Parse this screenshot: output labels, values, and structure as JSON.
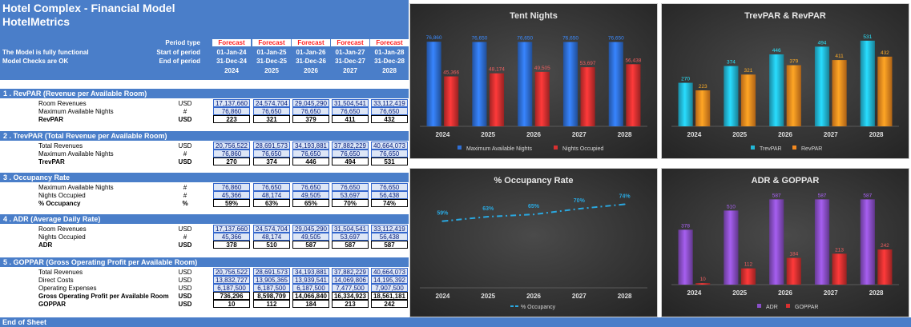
{
  "sheet": {
    "title": "Hotel Complex - Financial Model",
    "subtitle": "HotelMetrics",
    "notes": [
      "The Model is fully functional",
      "Model Checks are OK"
    ],
    "period_labels": [
      "Period type",
      "Start of period",
      "End of period"
    ],
    "years": [
      {
        "type": "Forecast",
        "start": "01-Jan-24",
        "end": "31-Dec-24",
        "year": "2024"
      },
      {
        "type": "Forecast",
        "start": "01-Jan-25",
        "end": "31-Dec-25",
        "year": "2025"
      },
      {
        "type": "Forecast",
        "start": "01-Jan-26",
        "end": "31-Dec-26",
        "year": "2026"
      },
      {
        "type": "Forecast",
        "start": "01-Jan-27",
        "end": "31-Dec-27",
        "year": "2027"
      },
      {
        "type": "Forecast",
        "start": "01-Jan-28",
        "end": "31-Dec-28",
        "year": "2028"
      }
    ],
    "sections": [
      {
        "title": "1 .  RevPAR (Revenue per Available Room)",
        "rows": [
          {
            "label": "Room Revenues",
            "unit": "USD",
            "kind": "in",
            "bold": false,
            "values": [
              "17,137,660",
              "24,574,704",
              "29,045,290",
              "31,504,541",
              "33,112,419"
            ]
          },
          {
            "label": "Maximum Available Nights",
            "unit": "#",
            "kind": "in",
            "bold": false,
            "values": [
              "76,860",
              "76,650",
              "76,650",
              "76,650",
              "76,650"
            ]
          },
          {
            "label": "RevPAR",
            "unit": "USD",
            "kind": "out",
            "bold": true,
            "values": [
              "223",
              "321",
              "379",
              "411",
              "432"
            ]
          }
        ]
      },
      {
        "title": "2 .  TrevPAR (Total Revenue per Available Room)",
        "rows": [
          {
            "label": "Total Revenues",
            "unit": "USD",
            "kind": "in",
            "bold": false,
            "values": [
              "20,756,522",
              "28,691,573",
              "34,193,881",
              "37,882,229",
              "40,664,073"
            ]
          },
          {
            "label": "Maximum Available Nights",
            "unit": "#",
            "kind": "in",
            "bold": false,
            "values": [
              "76,860",
              "76,650",
              "76,650",
              "76,650",
              "76,650"
            ]
          },
          {
            "label": "TrevPAR",
            "unit": "USD",
            "kind": "out",
            "bold": true,
            "values": [
              "270",
              "374",
              "446",
              "494",
              "531"
            ]
          }
        ]
      },
      {
        "title": "3 .  Occupancy Rate",
        "rows": [
          {
            "label": "Maximum Available Nights",
            "unit": "#",
            "kind": "in",
            "bold": false,
            "values": [
              "76,860",
              "76,650",
              "76,650",
              "76,650",
              "76,650"
            ]
          },
          {
            "label": "Nights Occupied",
            "unit": "#",
            "kind": "in",
            "bold": false,
            "values": [
              "45,366",
              "48,174",
              "49,505",
              "53,697",
              "56,438"
            ]
          },
          {
            "label": "% Occupancy",
            "unit": "%",
            "kind": "out",
            "bold": true,
            "values": [
              "59%",
              "63%",
              "65%",
              "70%",
              "74%"
            ]
          }
        ]
      },
      {
        "title": "4 .  ADR (Average Daily Rate)",
        "rows": [
          {
            "label": "Room Revenues",
            "unit": "USD",
            "kind": "in",
            "bold": false,
            "values": [
              "17,137,660",
              "24,574,704",
              "29,045,290",
              "31,504,541",
              "33,112,419"
            ]
          },
          {
            "label": "Nights Occupied",
            "unit": "#",
            "kind": "in",
            "bold": false,
            "values": [
              "45,366",
              "48,174",
              "49,505",
              "53,697",
              "56,438"
            ]
          },
          {
            "label": "ADR",
            "unit": "USD",
            "kind": "out",
            "bold": true,
            "values": [
              "378",
              "510",
              "587",
              "587",
              "587"
            ]
          }
        ]
      },
      {
        "title": "5 .  GOPPAR (Gross Operating Profit per Available Room)",
        "rows": [
          {
            "label": "Total Revenues",
            "unit": "USD",
            "kind": "in",
            "bold": false,
            "values": [
              "20,756,522",
              "28,691,573",
              "34,193,881",
              "37,882,229",
              "40,664,073"
            ]
          },
          {
            "label": "Direct Costs",
            "unit": "USD",
            "kind": "in",
            "bold": false,
            "values": [
              "13,832,727",
              "13,905,365",
              "13,939,541",
              "14,069,806",
              "14,195,392"
            ]
          },
          {
            "label": "Operating Expenses",
            "unit": "USD",
            "kind": "in",
            "bold": false,
            "values": [
              "6,187,500",
              "6,187,500",
              "6,187,500",
              "7,477,500",
              "7,907,500"
            ]
          },
          {
            "label": "Gross Operating Profit per Available Room",
            "unit": "USD",
            "kind": "out",
            "bold": true,
            "values": [
              "736,296",
              "8,598,709",
              "14,066,840",
              "16,334,923",
              "18,561,181"
            ]
          },
          {
            "label": "GOPPAR",
            "unit": "USD",
            "kind": "out",
            "bold": true,
            "values": [
              "10",
              "112",
              "184",
              "213",
              "242"
            ]
          }
        ]
      }
    ],
    "footer": "End of Sheet"
  },
  "chart_data": [
    {
      "type": "bar",
      "title": "Tent Nights",
      "categories": [
        "2024",
        "2025",
        "2026",
        "2027",
        "2028"
      ],
      "series": [
        {
          "name": "Maximum Available Nights",
          "values": [
            76860,
            76650,
            76650,
            76650,
            76650
          ],
          "labels": [
            "76,860",
            "76,650",
            "76,650",
            "76,650",
            "76,650"
          ],
          "color": "#2f6fd6"
        },
        {
          "name": "Nights Occupied",
          "values": [
            45366,
            48174,
            49505,
            53697,
            56438
          ],
          "labels": [
            "45,366",
            "48,174",
            "49,505",
            "53,697",
            "56,438"
          ],
          "color": "#d93030"
        }
      ],
      "ylim": [
        0,
        85000
      ],
      "legend": "bottom"
    },
    {
      "type": "bar",
      "title": "TrevPAR & RevPAR",
      "categories": [
        "2024",
        "2025",
        "2026",
        "2027",
        "2028"
      ],
      "series": [
        {
          "name": "TrevPAR",
          "values": [
            270,
            374,
            446,
            494,
            531
          ],
          "labels": [
            "270",
            "374",
            "446",
            "494",
            "531"
          ],
          "color": "#22b8d8"
        },
        {
          "name": "RevPAR",
          "values": [
            223,
            321,
            379,
            411,
            432
          ],
          "labels": [
            "223",
            "321",
            "379",
            "411",
            "432"
          ],
          "color": "#f58a1f"
        }
      ],
      "ylim": [
        0,
        580
      ],
      "legend": "bottom"
    },
    {
      "type": "line",
      "title": "% Occupancy Rate",
      "categories": [
        "2024",
        "2025",
        "2026",
        "2027",
        "2028"
      ],
      "series": [
        {
          "name": "% Occupancy",
          "values": [
            59,
            63,
            65,
            70,
            74
          ],
          "labels": [
            "59%",
            "63%",
            "65%",
            "70%",
            "74%"
          ],
          "color": "#2aa8e0"
        }
      ],
      "ylim": [
        0,
        80
      ],
      "legend": "bottom"
    },
    {
      "type": "bar",
      "title": "ADR & GOPPAR",
      "categories": [
        "2024",
        "2025",
        "2026",
        "2027",
        "2028"
      ],
      "series": [
        {
          "name": "ADR",
          "values": [
            378,
            510,
            587,
            587,
            587
          ],
          "labels": [
            "378",
            "510",
            "587",
            "587",
            "587"
          ],
          "color": "#8a4fc8"
        },
        {
          "name": "GOPPAR",
          "values": [
            10,
            112,
            184,
            213,
            242
          ],
          "labels": [
            "10",
            "112",
            "184",
            "213",
            "242"
          ],
          "color": "#d93030"
        }
      ],
      "ylim": [
        0,
        600
      ],
      "legend": "bottom"
    }
  ]
}
